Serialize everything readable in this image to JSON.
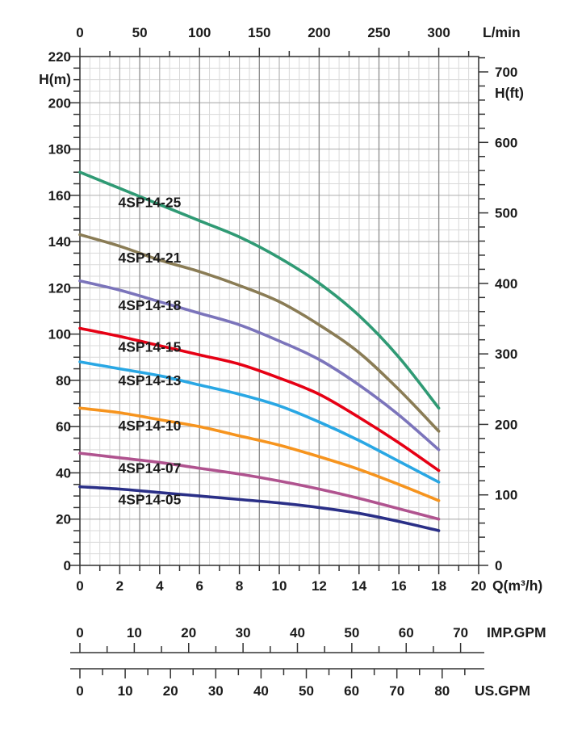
{
  "chart_data": {
    "type": "line",
    "description": "Submersible pump performance curves, head H versus flow Q",
    "grid": {
      "on": true,
      "minor_x_step_m3h": 0.5,
      "minor_y_step_m": 5
    },
    "x": [
      0,
      2,
      4,
      6,
      8,
      10,
      12,
      14,
      16,
      18
    ],
    "series": [
      {
        "name": "4SP14-25",
        "color": "#2f9a74",
        "values": [
          170,
          163,
          156,
          149,
          142,
          133,
          122,
          108,
          90,
          68
        ],
        "label_pos": {
          "x": 3.5,
          "y": 157
        }
      },
      {
        "name": "4SP14-21",
        "color": "#8a7c55",
        "values": [
          143,
          138,
          132,
          127,
          121,
          114,
          104,
          92,
          76,
          58
        ],
        "label_pos": {
          "x": 3.5,
          "y": 133
        }
      },
      {
        "name": "4SP14-18",
        "color": "#7b74bb",
        "values": [
          123,
          119,
          114,
          109,
          104,
          97,
          89,
          78,
          65,
          50
        ],
        "label_pos": {
          "x": 3.5,
          "y": 112.5
        }
      },
      {
        "name": "4SP14-15",
        "color": "#e60014",
        "values": [
          102.5,
          99,
          95,
          91,
          87,
          81,
          74,
          64,
          53,
          41
        ],
        "label_pos": {
          "x": 3.5,
          "y": 94.5
        }
      },
      {
        "name": "4SP14-13",
        "color": "#29a7e4",
        "values": [
          88,
          85,
          82,
          78,
          74,
          69,
          62,
          54,
          45,
          36
        ],
        "label_pos": {
          "x": 3.5,
          "y": 80
        }
      },
      {
        "name": "4SP14-10",
        "color": "#f6941e",
        "values": [
          68,
          66,
          63,
          60,
          56,
          52,
          47,
          41.5,
          35,
          28
        ],
        "label_pos": {
          "x": 3.5,
          "y": 60.5
        }
      },
      {
        "name": "4SP14-07",
        "color": "#b0538f",
        "values": [
          48.5,
          46.5,
          44.5,
          42,
          39.5,
          36.5,
          33,
          29,
          24.5,
          20
        ],
        "label_pos": {
          "x": 3.5,
          "y": 42
        }
      },
      {
        "name": "4SP14-05",
        "color": "#2a2f87",
        "values": [
          34,
          33,
          31.5,
          30,
          28.5,
          27,
          25,
          22.5,
          19,
          15
        ],
        "label_pos": {
          "x": 3.5,
          "y": 28.5
        }
      }
    ],
    "axes": {
      "bottom": {
        "label": "Q(m³/h)",
        "min": 0,
        "max": 20,
        "major_ticks": [
          0,
          2,
          4,
          6,
          8,
          10,
          12,
          14,
          16,
          18,
          20
        ],
        "minor_step": 1
      },
      "top": {
        "label": "L/min",
        "major_ticks": [
          0,
          50,
          100,
          150,
          200,
          250,
          300
        ],
        "minor_step": 25,
        "minor_max": 325,
        "m3h_per_unit": 0.06
      },
      "left": {
        "label": "H(m)",
        "min": 0,
        "max": 220,
        "major_ticks": [
          0,
          20,
          40,
          60,
          80,
          100,
          120,
          140,
          160,
          180,
          200,
          220
        ],
        "minor_step": 5
      },
      "right": {
        "label": "H(ft)",
        "major_ticks": [
          0,
          100,
          200,
          300,
          400,
          500,
          600,
          700
        ],
        "minor_step": 20,
        "minor_max": 720,
        "m_per_unit": 0.3048
      }
    },
    "rulers": [
      {
        "name": "imp-gpm",
        "label": "IMP.GPM",
        "major_ticks": [
          0,
          10,
          20,
          30,
          40,
          50,
          60,
          70
        ],
        "minor_step": 5,
        "minor_max": 70,
        "m3h_per_unit": 0.2727654,
        "tick_direction": "up"
      },
      {
        "name": "us-gpm",
        "label": "US.GPM",
        "major_ticks": [
          0,
          10,
          20,
          30,
          40,
          50,
          60,
          70,
          80
        ],
        "minor_step": 5,
        "minor_max": 85,
        "m3h_per_unit": 0.2271247,
        "tick_direction": "down"
      }
    ],
    "colors": {
      "axis": "#333333",
      "grid_minor": "#d9d9d9",
      "grid_medium": "#b5b5b5",
      "grid_major": "#8d8d8d",
      "text": "#1b1b1b"
    }
  }
}
